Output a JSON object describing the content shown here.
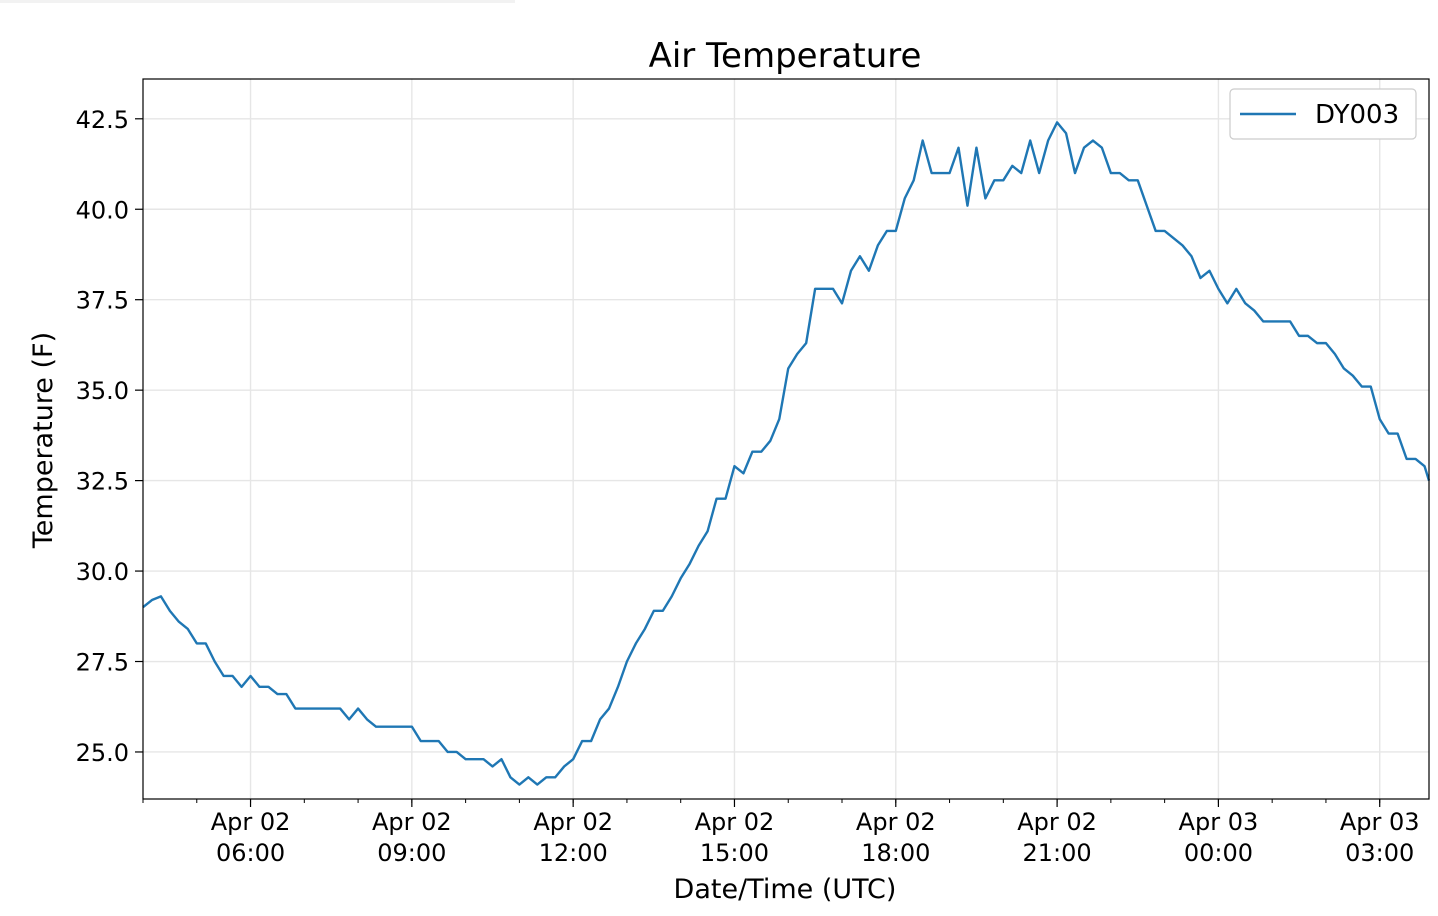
{
  "chart_data": {
    "type": "line",
    "title": "Air Temperature",
    "xlabel": "Date/Time (UTC)",
    "ylabel": "Temperature (F)",
    "grid": true,
    "legend_position": "top-right",
    "xlim": [
      "2024-04-02T04:00",
      "2024-04-03T03:55"
    ],
    "ylim": [
      23.7,
      43.6
    ],
    "x_ticks": [
      {
        "t": "2024-04-02T06:00",
        "label_line1": "Apr 02",
        "label_line2": "06:00"
      },
      {
        "t": "2024-04-02T09:00",
        "label_line1": "Apr 02",
        "label_line2": "09:00"
      },
      {
        "t": "2024-04-02T12:00",
        "label_line1": "Apr 02",
        "label_line2": "12:00"
      },
      {
        "t": "2024-04-02T15:00",
        "label_line1": "Apr 02",
        "label_line2": "15:00"
      },
      {
        "t": "2024-04-02T18:00",
        "label_line1": "Apr 02",
        "label_line2": "18:00"
      },
      {
        "t": "2024-04-02T21:00",
        "label_line1": "Apr 02",
        "label_line2": "21:00"
      },
      {
        "t": "2024-04-03T00:00",
        "label_line1": "Apr 03",
        "label_line2": "00:00"
      },
      {
        "t": "2024-04-03T03:00",
        "label_line1": "Apr 03",
        "label_line2": "03:00"
      }
    ],
    "y_ticks": [
      {
        "v": 25.0,
        "label": "25.0"
      },
      {
        "v": 27.5,
        "label": "27.5"
      },
      {
        "v": 30.0,
        "label": "30.0"
      },
      {
        "v": 32.5,
        "label": "32.5"
      },
      {
        "v": 35.0,
        "label": "35.0"
      },
      {
        "v": 37.5,
        "label": "37.5"
      },
      {
        "v": 40.0,
        "label": "40.0"
      },
      {
        "v": 42.5,
        "label": "42.5"
      }
    ],
    "series": [
      {
        "name": "DY003",
        "color": "#1f77b4",
        "points": [
          [
            "2024-04-02T04:00",
            29.0
          ],
          [
            "2024-04-02T04:10",
            29.2
          ],
          [
            "2024-04-02T04:20",
            29.3
          ],
          [
            "2024-04-02T04:30",
            28.9
          ],
          [
            "2024-04-02T04:40",
            28.6
          ],
          [
            "2024-04-02T04:50",
            28.4
          ],
          [
            "2024-04-02T05:00",
            28.0
          ],
          [
            "2024-04-02T05:10",
            28.0
          ],
          [
            "2024-04-02T05:20",
            27.5
          ],
          [
            "2024-04-02T05:30",
            27.1
          ],
          [
            "2024-04-02T05:40",
            27.1
          ],
          [
            "2024-04-02T05:50",
            26.8
          ],
          [
            "2024-04-02T06:00",
            27.1
          ],
          [
            "2024-04-02T06:10",
            26.8
          ],
          [
            "2024-04-02T06:20",
            26.8
          ],
          [
            "2024-04-02T06:30",
            26.6
          ],
          [
            "2024-04-02T06:40",
            26.6
          ],
          [
            "2024-04-02T06:50",
            26.2
          ],
          [
            "2024-04-02T07:00",
            26.2
          ],
          [
            "2024-04-02T07:10",
            26.2
          ],
          [
            "2024-04-02T07:20",
            26.2
          ],
          [
            "2024-04-02T07:30",
            26.2
          ],
          [
            "2024-04-02T07:40",
            26.2
          ],
          [
            "2024-04-02T07:50",
            25.9
          ],
          [
            "2024-04-02T08:00",
            26.2
          ],
          [
            "2024-04-02T08:10",
            25.9
          ],
          [
            "2024-04-02T08:20",
            25.7
          ],
          [
            "2024-04-02T08:30",
            25.7
          ],
          [
            "2024-04-02T08:40",
            25.7
          ],
          [
            "2024-04-02T08:50",
            25.7
          ],
          [
            "2024-04-02T09:00",
            25.7
          ],
          [
            "2024-04-02T09:10",
            25.3
          ],
          [
            "2024-04-02T09:20",
            25.3
          ],
          [
            "2024-04-02T09:30",
            25.3
          ],
          [
            "2024-04-02T09:40",
            25.0
          ],
          [
            "2024-04-02T09:50",
            25.0
          ],
          [
            "2024-04-02T10:00",
            24.8
          ],
          [
            "2024-04-02T10:10",
            24.8
          ],
          [
            "2024-04-02T10:20",
            24.8
          ],
          [
            "2024-04-02T10:30",
            24.6
          ],
          [
            "2024-04-02T10:40",
            24.8
          ],
          [
            "2024-04-02T10:50",
            24.3
          ],
          [
            "2024-04-02T11:00",
            24.1
          ],
          [
            "2024-04-02T11:10",
            24.3
          ],
          [
            "2024-04-02T11:20",
            24.1
          ],
          [
            "2024-04-02T11:30",
            24.3
          ],
          [
            "2024-04-02T11:40",
            24.3
          ],
          [
            "2024-04-02T11:50",
            24.6
          ],
          [
            "2024-04-02T12:00",
            24.8
          ],
          [
            "2024-04-02T12:10",
            25.3
          ],
          [
            "2024-04-02T12:20",
            25.3
          ],
          [
            "2024-04-02T12:30",
            25.9
          ],
          [
            "2024-04-02T12:40",
            26.2
          ],
          [
            "2024-04-02T12:50",
            26.8
          ],
          [
            "2024-04-02T13:00",
            27.5
          ],
          [
            "2024-04-02T13:10",
            28.0
          ],
          [
            "2024-04-02T13:20",
            28.4
          ],
          [
            "2024-04-02T13:30",
            28.9
          ],
          [
            "2024-04-02T13:40",
            28.9
          ],
          [
            "2024-04-02T13:50",
            29.3
          ],
          [
            "2024-04-02T14:00",
            29.8
          ],
          [
            "2024-04-02T14:10",
            30.2
          ],
          [
            "2024-04-02T14:20",
            30.7
          ],
          [
            "2024-04-02T14:30",
            31.1
          ],
          [
            "2024-04-02T14:40",
            32.0
          ],
          [
            "2024-04-02T14:50",
            32.0
          ],
          [
            "2024-04-02T15:00",
            32.9
          ],
          [
            "2024-04-02T15:10",
            32.7
          ],
          [
            "2024-04-02T15:20",
            33.3
          ],
          [
            "2024-04-02T15:30",
            33.3
          ],
          [
            "2024-04-02T15:40",
            33.6
          ],
          [
            "2024-04-02T15:50",
            34.2
          ],
          [
            "2024-04-02T16:00",
            35.6
          ],
          [
            "2024-04-02T16:10",
            36.0
          ],
          [
            "2024-04-02T16:20",
            36.3
          ],
          [
            "2024-04-02T16:30",
            37.8
          ],
          [
            "2024-04-02T16:40",
            37.8
          ],
          [
            "2024-04-02T16:50",
            37.8
          ],
          [
            "2024-04-02T17:00",
            37.4
          ],
          [
            "2024-04-02T17:10",
            38.3
          ],
          [
            "2024-04-02T17:20",
            38.7
          ],
          [
            "2024-04-02T17:30",
            38.3
          ],
          [
            "2024-04-02T17:40",
            39.0
          ],
          [
            "2024-04-02T17:50",
            39.4
          ],
          [
            "2024-04-02T18:00",
            39.4
          ],
          [
            "2024-04-02T18:10",
            40.3
          ],
          [
            "2024-04-02T18:20",
            40.8
          ],
          [
            "2024-04-02T18:30",
            41.9
          ],
          [
            "2024-04-02T18:40",
            41.0
          ],
          [
            "2024-04-02T18:50",
            41.0
          ],
          [
            "2024-04-02T19:00",
            41.0
          ],
          [
            "2024-04-02T19:10",
            41.7
          ],
          [
            "2024-04-02T19:20",
            40.1
          ],
          [
            "2024-04-02T19:30",
            41.7
          ],
          [
            "2024-04-02T19:40",
            40.3
          ],
          [
            "2024-04-02T19:50",
            40.8
          ],
          [
            "2024-04-02T20:00",
            40.8
          ],
          [
            "2024-04-02T20:10",
            41.2
          ],
          [
            "2024-04-02T20:20",
            41.0
          ],
          [
            "2024-04-02T20:30",
            41.9
          ],
          [
            "2024-04-02T20:40",
            41.0
          ],
          [
            "2024-04-02T20:50",
            41.9
          ],
          [
            "2024-04-02T21:00",
            42.4
          ],
          [
            "2024-04-02T21:10",
            42.1
          ],
          [
            "2024-04-02T21:20",
            41.0
          ],
          [
            "2024-04-02T21:30",
            41.7
          ],
          [
            "2024-04-02T21:40",
            41.9
          ],
          [
            "2024-04-02T21:50",
            41.7
          ],
          [
            "2024-04-02T22:00",
            41.0
          ],
          [
            "2024-04-02T22:10",
            41.0
          ],
          [
            "2024-04-02T22:20",
            40.8
          ],
          [
            "2024-04-02T22:30",
            40.8
          ],
          [
            "2024-04-02T22:40",
            40.1
          ],
          [
            "2024-04-02T22:50",
            39.4
          ],
          [
            "2024-04-02T23:00",
            39.4
          ],
          [
            "2024-04-02T23:10",
            39.2
          ],
          [
            "2024-04-02T23:20",
            39.0
          ],
          [
            "2024-04-02T23:30",
            38.7
          ],
          [
            "2024-04-02T23:40",
            38.1
          ],
          [
            "2024-04-02T23:50",
            38.3
          ],
          [
            "2024-04-03T00:00",
            37.8
          ],
          [
            "2024-04-03T00:10",
            37.4
          ],
          [
            "2024-04-03T00:20",
            37.8
          ],
          [
            "2024-04-03T00:30",
            37.4
          ],
          [
            "2024-04-03T00:40",
            37.2
          ],
          [
            "2024-04-03T00:50",
            36.9
          ],
          [
            "2024-04-03T01:00",
            36.9
          ],
          [
            "2024-04-03T01:10",
            36.9
          ],
          [
            "2024-04-03T01:20",
            36.9
          ],
          [
            "2024-04-03T01:30",
            36.5
          ],
          [
            "2024-04-03T01:40",
            36.5
          ],
          [
            "2024-04-03T01:50",
            36.3
          ],
          [
            "2024-04-03T02:00",
            36.3
          ],
          [
            "2024-04-03T02:10",
            36.0
          ],
          [
            "2024-04-03T02:20",
            35.6
          ],
          [
            "2024-04-03T02:30",
            35.4
          ],
          [
            "2024-04-03T02:40",
            35.1
          ],
          [
            "2024-04-03T02:50",
            35.1
          ],
          [
            "2024-04-03T03:00",
            34.2
          ],
          [
            "2024-04-03T03:10",
            33.8
          ],
          [
            "2024-04-03T03:20",
            33.8
          ],
          [
            "2024-04-03T03:30",
            33.1
          ],
          [
            "2024-04-03T03:40",
            33.1
          ],
          [
            "2024-04-03T03:50",
            32.9
          ],
          [
            "2024-04-03T03:55",
            32.5
          ]
        ]
      }
    ]
  }
}
